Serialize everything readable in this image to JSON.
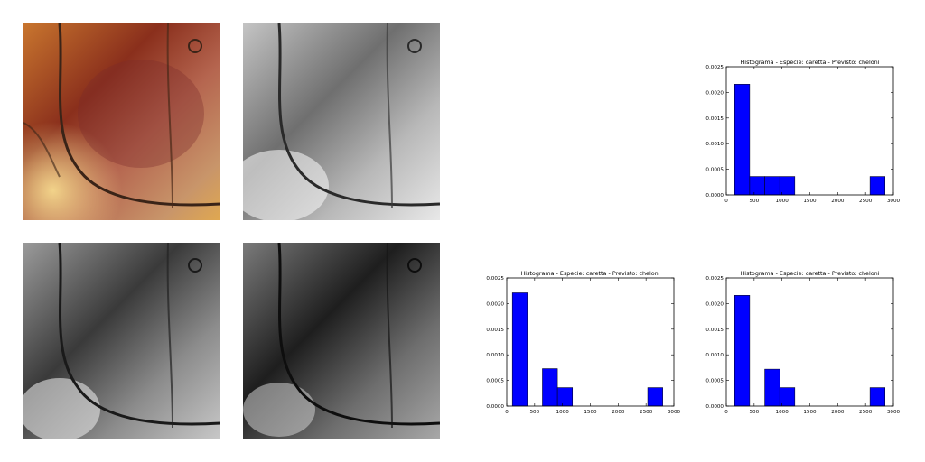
{
  "images": [
    {
      "name": "carapace-color-photo",
      "tone": "color"
    },
    {
      "name": "carapace-grayscale-photo-1",
      "tone": "light-gray"
    },
    {
      "name": "carapace-grayscale-photo-2",
      "tone": "mid-gray"
    },
    {
      "name": "carapace-grayscale-photo-3",
      "tone": "dark-gray"
    }
  ],
  "colors": {
    "bar": "#0000ff",
    "axis": "#000000"
  },
  "chart_data": [
    {
      "type": "bar",
      "title": "Histograma - Especie: caretta - Previsto: cheloni",
      "xlim": [
        0,
        3000
      ],
      "ylim": [
        0,
        0.0025
      ],
      "xticks": [
        "0",
        "500",
        "1000",
        "1500",
        "2000",
        "2500",
        "3000"
      ],
      "yticks": [
        "0.0000",
        "0.0005",
        "0.0010",
        "0.0015",
        "0.0020",
        "0.0025"
      ],
      "bin_edges": [
        150,
        420,
        690,
        960,
        1230,
        1500,
        1770,
        2040,
        2310,
        2580,
        2850
      ],
      "values": [
        0.00216,
        0.00036,
        0.00036,
        0.00036,
        0,
        0,
        0,
        0,
        0,
        0.00036
      ]
    },
    {
      "type": "bar",
      "title": "Histograma - Especie: caretta - Previsto: cheloni",
      "xlim": [
        0,
        3000
      ],
      "ylim": [
        0,
        0.0025
      ],
      "xticks": [
        "0",
        "500",
        "1000",
        "1500",
        "2000",
        "2500",
        "3000"
      ],
      "yticks": [
        "0.0000",
        "0.0005",
        "0.0010",
        "0.0015",
        "0.0020",
        "0.0025"
      ],
      "bin_edges": [
        100,
        370,
        640,
        910,
        1180,
        1450,
        1720,
        1990,
        2260,
        2530,
        2800
      ],
      "values": [
        0.00221,
        0,
        0.00073,
        0.00036,
        0,
        0,
        0,
        0,
        0,
        0.00036
      ]
    },
    {
      "type": "bar",
      "title": "Histograma - Especie: caretta - Previsto: cheloni",
      "xlim": [
        0,
        3000
      ],
      "ylim": [
        0,
        0.0025
      ],
      "xticks": [
        "0",
        "500",
        "1000",
        "1500",
        "2000",
        "2500",
        "3000"
      ],
      "yticks": [
        "0.0000",
        "0.0005",
        "0.0010",
        "0.0015",
        "0.0020",
        "0.0025"
      ],
      "bin_edges": [
        150,
        420,
        690,
        960,
        1230,
        1500,
        1770,
        2040,
        2310,
        2580,
        2850
      ],
      "values": [
        0.00216,
        0,
        0.00072,
        0.00036,
        0,
        0,
        0,
        0,
        0,
        0.00036
      ]
    }
  ]
}
